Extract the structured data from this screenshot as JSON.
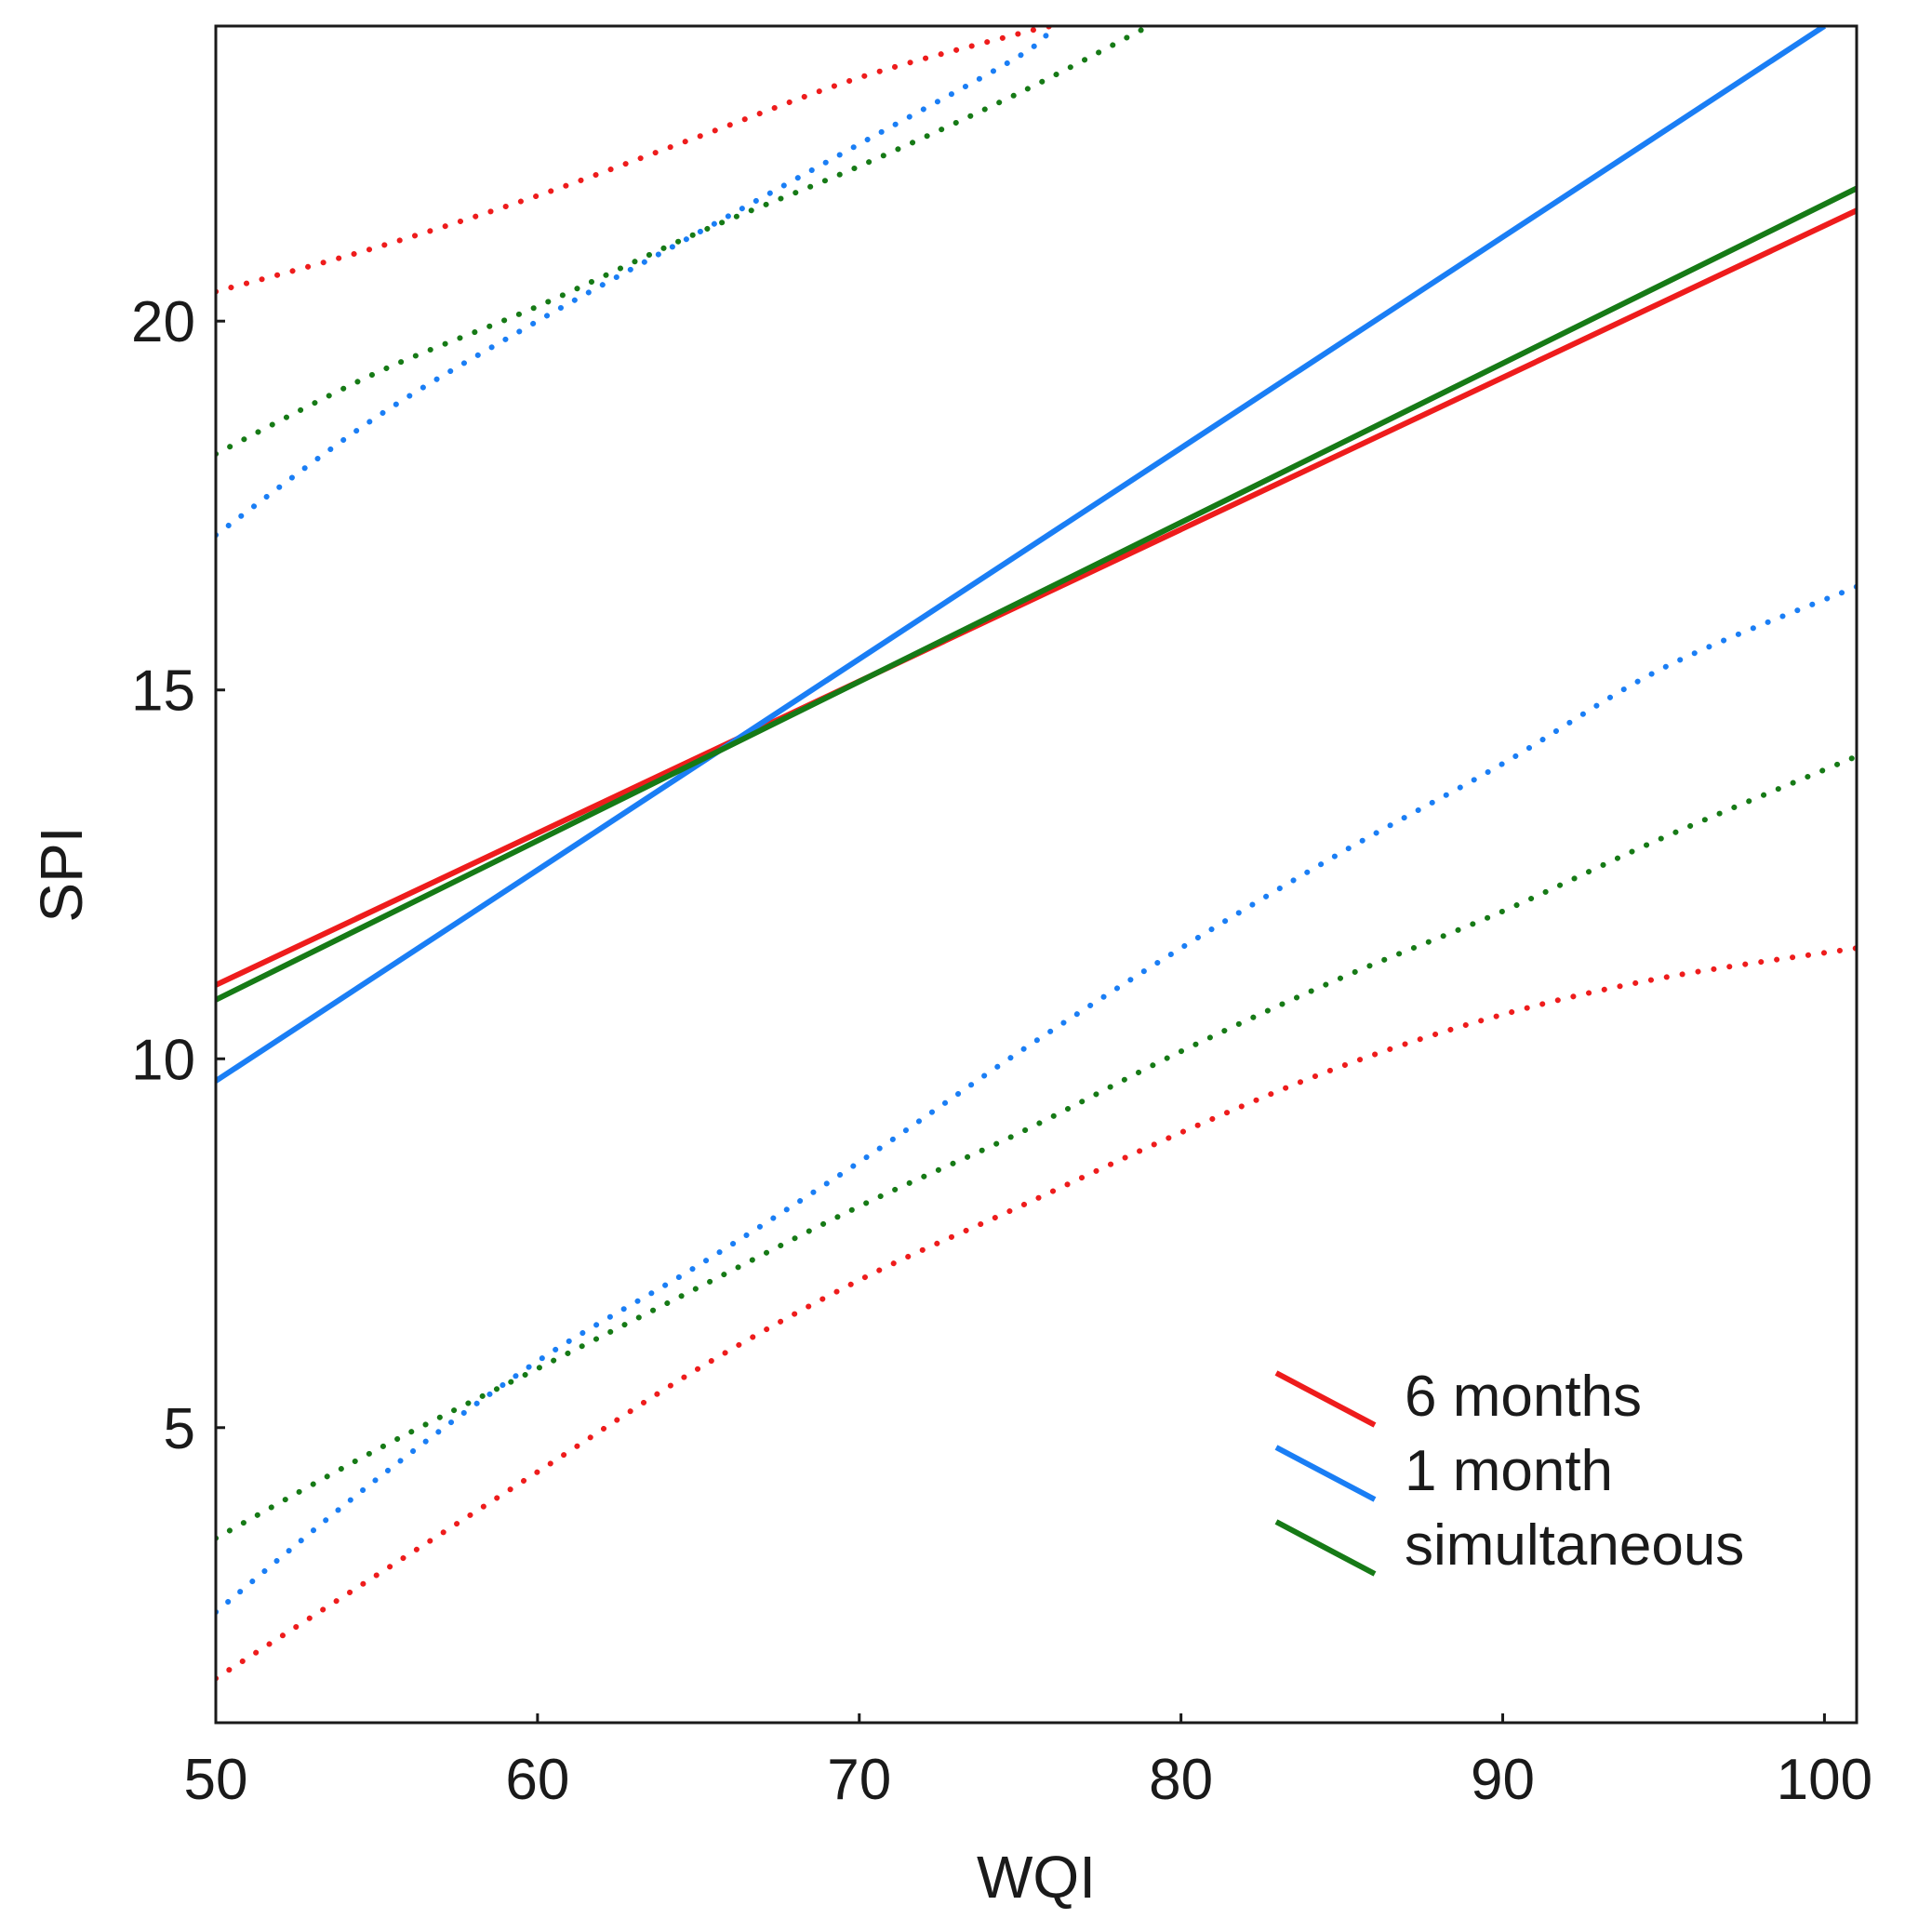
{
  "chart_data": {
    "type": "line",
    "title": "",
    "xlabel": "WQI",
    "ylabel": "SPI",
    "xlim": [
      50,
      101
    ],
    "ylim": [
      1.0,
      24.0
    ],
    "x_ticks": [
      50,
      60,
      70,
      80,
      90,
      100
    ],
    "x_tick_labels": [
      "50",
      "60",
      "70",
      "80",
      "90",
      "100"
    ],
    "y_ticks": [
      5,
      10,
      15,
      20
    ],
    "y_tick_labels": [
      "5",
      "10",
      "15",
      "20"
    ],
    "grid": false,
    "legend": {
      "position": "bottom-right",
      "entries": [
        "6 months",
        "1 month",
        "simultaneous"
      ]
    },
    "series": [
      {
        "name": "6 months",
        "color": "#ee1c1c",
        "fit": {
          "x": [
            50,
            101
          ],
          "y": [
            11.0,
            21.5
          ]
        },
        "upper": {
          "x": [
            50,
            55,
            60,
            65,
            70,
            75,
            76
          ],
          "y": [
            20.4,
            21.0,
            21.7,
            22.5,
            23.3,
            23.9,
            24.0
          ]
        },
        "lower": {
          "x": [
            50,
            55,
            60,
            65,
            70,
            75,
            80,
            85,
            90,
            95,
            101
          ],
          "y": [
            1.6,
            3.0,
            4.4,
            5.8,
            7.0,
            8.0,
            9.0,
            9.9,
            10.6,
            11.1,
            11.5
          ]
        }
      },
      {
        "name": "1 month",
        "color": "#1a7ef5",
        "fit": {
          "x": [
            50,
            100
          ],
          "y": [
            9.7,
            24.0
          ]
        },
        "upper": {
          "x": [
            50,
            55,
            60,
            65,
            70,
            75,
            76
          ],
          "y": [
            17.1,
            18.7,
            20.0,
            21.2,
            22.4,
            23.6,
            24.0
          ]
        },
        "lower": {
          "x": [
            50,
            55,
            60,
            65,
            70,
            75,
            80,
            85,
            90,
            95,
            101
          ],
          "y": [
            2.5,
            4.3,
            5.9,
            7.2,
            8.6,
            10.1,
            11.5,
            12.8,
            14.0,
            15.3,
            16.4
          ]
        }
      },
      {
        "name": "simultaneous",
        "color": "#167a16",
        "fit": {
          "x": [
            50,
            101
          ],
          "y": [
            10.8,
            21.8
          ]
        },
        "upper": {
          "x": [
            50,
            55,
            60,
            65,
            70,
            75,
            79
          ],
          "y": [
            18.2,
            19.3,
            20.2,
            21.2,
            22.1,
            23.1,
            24.0
          ]
        },
        "lower": {
          "x": [
            50,
            55,
            60,
            65,
            70,
            75,
            80,
            85,
            90,
            95,
            101
          ],
          "y": [
            3.5,
            4.7,
            5.8,
            6.9,
            8.0,
            9.0,
            10.1,
            11.1,
            12.0,
            13.0,
            14.1
          ]
        }
      }
    ]
  }
}
